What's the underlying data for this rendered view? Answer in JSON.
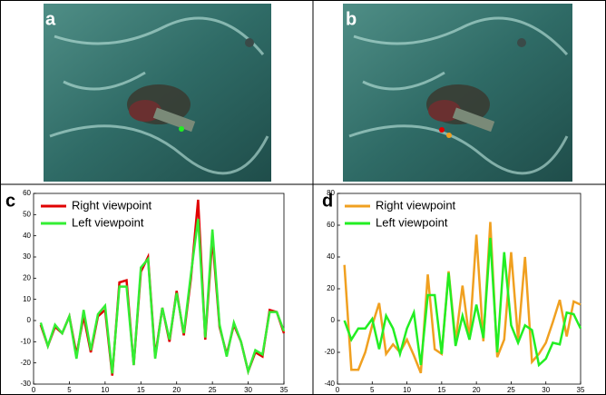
{
  "panel_labels": [
    "a",
    "b",
    "c",
    "d"
  ],
  "chart_data": [
    {
      "type": "line",
      "x": [
        1,
        2,
        3,
        4,
        5,
        6,
        7,
        8,
        9,
        10,
        11,
        12,
        13,
        14,
        15,
        16,
        17,
        18,
        19,
        20,
        21,
        22,
        23,
        24,
        25,
        26,
        27,
        28,
        29,
        30,
        31,
        32,
        33,
        34,
        35
      ],
      "series": [
        {
          "name": "Right viewpoint",
          "color": "#e00000",
          "values": [
            -2,
            -12,
            -3,
            -6,
            2,
            -16,
            2,
            -15,
            2,
            5,
            -26,
            18,
            19,
            -21,
            23,
            30,
            -17,
            6,
            -10,
            14,
            -7,
            20,
            57,
            -9,
            39,
            -3,
            -16,
            -2,
            -10,
            -24,
            -15,
            -17,
            5,
            4,
            -6
          ]
        },
        {
          "name": "Left viewpoint",
          "color": "#33ee33",
          "values": [
            -1,
            -12,
            -2,
            -6,
            2,
            -18,
            5,
            -14,
            3,
            7,
            -25,
            16,
            16,
            -21,
            25,
            29,
            -18,
            6,
            -9,
            13,
            -6,
            22,
            48,
            -8,
            43,
            -2,
            -17,
            -1,
            -10,
            -24,
            -14,
            -16,
            4,
            4,
            -5
          ]
        }
      ],
      "xlim": [
        0,
        35
      ],
      "xticks": [
        0,
        5,
        10,
        15,
        20,
        25,
        30,
        35
      ],
      "ylim": [
        -30,
        60
      ],
      "yticks": [
        -30,
        -20,
        -10,
        0,
        10,
        20,
        30,
        40,
        50,
        60
      ],
      "legend": "top-left"
    },
    {
      "type": "line",
      "x": [
        1,
        2,
        3,
        4,
        5,
        6,
        7,
        8,
        9,
        10,
        11,
        12,
        13,
        14,
        15,
        16,
        17,
        18,
        19,
        20,
        21,
        22,
        23,
        24,
        25,
        26,
        27,
        28,
        29,
        30,
        31,
        32,
        33,
        34,
        35
      ],
      "series": [
        {
          "name": "Right viewpoint",
          "color": "#f0a020",
          "values": [
            35,
            -31,
            -31,
            -20,
            -3,
            11,
            -21,
            -15,
            -20,
            -12,
            -22,
            -33,
            29,
            -18,
            -21,
            31,
            -13,
            22,
            -12,
            54,
            -13,
            62,
            -23,
            -12,
            43,
            -12,
            40,
            -26,
            -21,
            -14,
            -1,
            13,
            -10,
            12,
            10
          ]
        },
        {
          "name": "Left viewpoint",
          "color": "#22ee22",
          "values": [
            0,
            -12,
            -5,
            -5,
            1,
            -18,
            3,
            -5,
            -21,
            -5,
            5,
            -28,
            16,
            16,
            -21,
            30,
            -16,
            3,
            -12,
            10,
            -11,
            52,
            -20,
            43,
            -3,
            -14,
            -3,
            -6,
            -28,
            -24,
            -14,
            -15,
            5,
            4,
            -5
          ]
        }
      ],
      "xlim": [
        0,
        35
      ],
      "xticks": [
        0,
        5,
        10,
        15,
        20,
        25,
        30,
        35
      ],
      "ylim": [
        -40,
        80
      ],
      "yticks": [
        -40,
        -20,
        0,
        20,
        40,
        60,
        80
      ],
      "legend": "top-left"
    }
  ]
}
